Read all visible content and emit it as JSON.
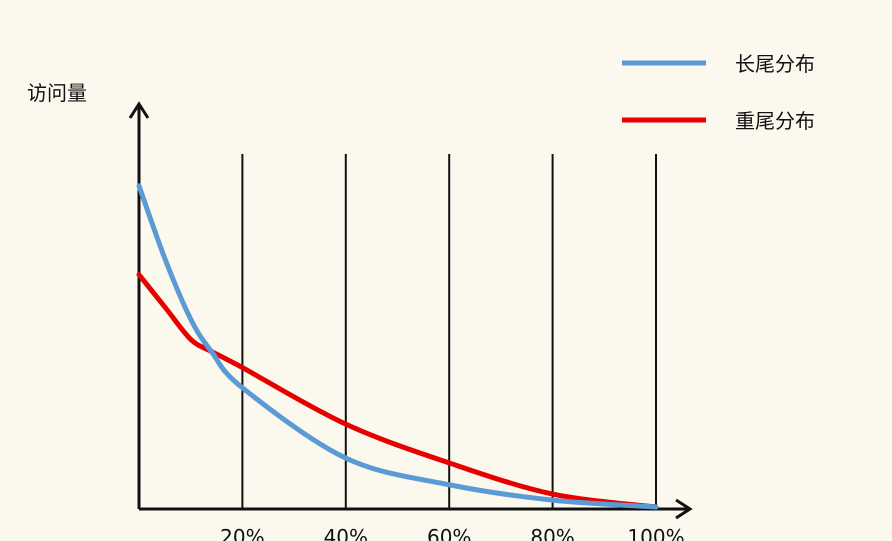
{
  "chart_data": {
    "type": "line",
    "title": "",
    "ylabel": "访问量",
    "xlabel": "",
    "x": [
      0,
      5,
      10,
      14,
      20,
      40,
      60,
      80,
      100
    ],
    "xticks": [
      "20%",
      "40%",
      "60%",
      "80%",
      "100%"
    ],
    "xlim": [
      0,
      100
    ],
    "ylim": [
      0,
      100
    ],
    "grid": "vertical",
    "legend_position": "top-right",
    "series": [
      {
        "name": "长尾分布",
        "color": "#5b9bd5",
        "values": [
          80,
          62,
          47,
          39,
          30,
          12.6,
          6,
          2.2,
          0.5
        ]
      },
      {
        "name": "重尾分布",
        "color": "#e60000",
        "values": [
          58,
          50,
          42,
          39,
          35,
          21,
          11.4,
          3.7,
          0.5
        ]
      }
    ]
  }
}
